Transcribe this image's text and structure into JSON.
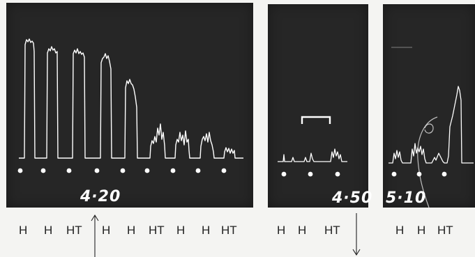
{
  "panels": [
    {
      "id": "p1",
      "time": "4·20",
      "marker_count": 9
    },
    {
      "id": "p2",
      "time": "4·50",
      "marker_count": 3
    },
    {
      "id": "p3",
      "time": "5·10",
      "marker_count": 3
    }
  ],
  "stimulus_labels": {
    "p1_group_a": [
      "H",
      "H",
      "HT"
    ],
    "p1_group_b": [
      "H",
      "H",
      "HT",
      "H",
      "H",
      "HT"
    ],
    "p2": [
      "H",
      "H",
      "HT"
    ],
    "p3": [
      "H",
      "H",
      "HT"
    ]
  },
  "colors": {
    "panel_background": "#262626",
    "trace": "#ffffff",
    "page_background": "#f4f4f2",
    "label_text": "#222222"
  },
  "annotations": {
    "up_arrow_icon": "arrow-up",
    "down_arrow_icon": "arrow-down",
    "bracket_icon": "bracket"
  }
}
